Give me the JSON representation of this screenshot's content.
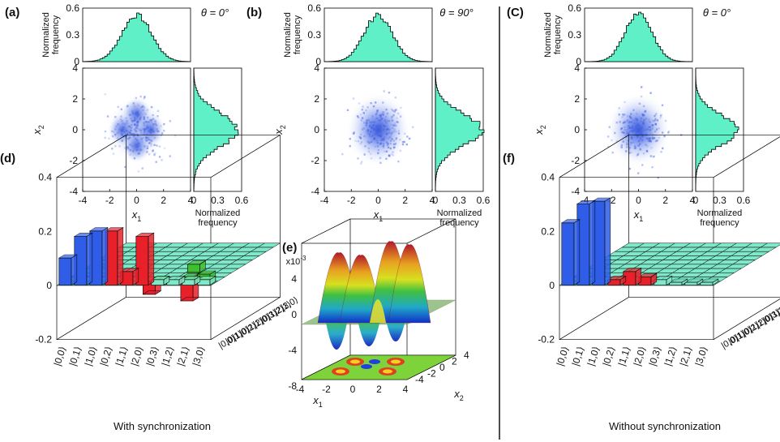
{
  "figure": {
    "panels": [
      {
        "id": "a",
        "label": "(a)",
        "theta": "θ = 0°",
        "pattern": "four-lobe"
      },
      {
        "id": "b",
        "label": "(b)",
        "theta": "θ = 90°",
        "pattern": "gaussian"
      },
      {
        "id": "c",
        "label": "(C)",
        "theta": "θ = 0°",
        "pattern": "gaussian"
      }
    ],
    "scatter_axes": {
      "xlabel": "x",
      "xsub": "1",
      "ylabel": "x",
      "ysub": "2",
      "ticks": [
        "-4",
        "-2",
        "0",
        "2",
        "4"
      ]
    },
    "hist_axes": {
      "ylabel_line1": "Normalized",
      "ylabel_line2": "frequency",
      "ticks": [
        "0",
        "0.3",
        "0.6"
      ]
    },
    "panel_d": {
      "label": "(d)",
      "caption": "With synchronization"
    },
    "panel_e": {
      "label": "(e)",
      "zscale": "x10",
      "zscale_exp": "-3",
      "zticks": [
        "4",
        "0",
        "-4",
        "-8"
      ],
      "x1_ticks": [
        "-4",
        "-2",
        "0",
        "2",
        "4"
      ],
      "x2_ticks": [
        "4",
        "2",
        "0",
        "-2",
        "-4"
      ],
      "x1_label": "x",
      "x1_sub": "1",
      "x2_label": "x",
      "x2_sub": "2"
    },
    "panel_f": {
      "label": "(f)",
      "caption": "Without synchronization"
    },
    "bar3d_axes": {
      "zticks": [
        "0.4",
        "0.2",
        "0",
        "-0.2"
      ],
      "basis": [
        "|0,0⟩",
        "|0,1⟩",
        "|1,0⟩",
        "|0,2⟩",
        "|1,1⟩",
        "|2,0⟩",
        "|0,3⟩",
        "|1,2⟩",
        "|2,1⟩",
        "|3,0⟩"
      ]
    },
    "colors": {
      "hist": "#5ff0c8",
      "blue": "#2f5de8",
      "red": "#e8202a",
      "green": "#3fbf2f",
      "grid": "#7fe8c8"
    }
  },
  "chart_data": [
    {
      "type": "histogram",
      "panel": "a-top",
      "xlabel": "x1",
      "ylabel": "Normalized frequency",
      "ylim": [
        0,
        0.6
      ],
      "peak": 0.52
    },
    {
      "type": "histogram",
      "panel": "a-right",
      "xlabel": "Normalized frequency",
      "ylabel": "x2",
      "xlim": [
        0,
        0.6
      ],
      "peak": 0.55
    },
    {
      "type": "heatmap",
      "panel": "a",
      "xlabel": "x1",
      "ylabel": "x2",
      "xlim": [
        -4,
        4
      ],
      "ylim": [
        -4,
        4
      ]
    },
    {
      "type": "histogram",
      "panel": "b-top",
      "ylim": [
        0,
        0.6
      ],
      "peak": 0.52
    },
    {
      "type": "histogram",
      "panel": "b-right",
      "xlim": [
        0,
        0.6
      ],
      "peak": 0.58
    },
    {
      "type": "heatmap",
      "panel": "b",
      "xlabel": "x1",
      "ylabel": "x2",
      "xlim": [
        -4,
        4
      ],
      "ylim": [
        -4,
        4
      ]
    },
    {
      "type": "histogram",
      "panel": "c-top",
      "ylim": [
        0,
        0.6
      ],
      "peak": 0.55
    },
    {
      "type": "histogram",
      "panel": "c-right",
      "xlim": [
        0,
        0.6
      ],
      "peak": 0.52
    },
    {
      "type": "heatmap",
      "panel": "c",
      "xlabel": "x1",
      "ylabel": "x2",
      "xlim": [
        -4,
        4
      ],
      "ylim": [
        -4,
        4
      ]
    },
    {
      "type": "bar3d",
      "panel": "d",
      "title": "With synchronization",
      "zlim": [
        -0.2,
        0.4
      ],
      "diag_values": [
        0.1,
        0.18,
        0.2,
        0.2,
        0.05,
        0.18,
        0.02,
        0.02,
        0.02,
        0.02
      ],
      "offdiag": [
        {
          "row": 0,
          "col": 6,
          "value": 0.02,
          "color": "green"
        },
        {
          "row": 0,
          "col": 8,
          "value": 0.03,
          "color": "green"
        },
        {
          "row": 0,
          "col": 9,
          "value": 0.04,
          "color": "green"
        },
        {
          "row": 2,
          "col": 7,
          "value": -0.09,
          "color": "red"
        },
        {
          "row": 1,
          "col": 5,
          "value": -0.05,
          "color": "red"
        },
        {
          "row": 3,
          "col": 7,
          "value": 0.03,
          "color": "green"
        }
      ]
    },
    {
      "type": "surface",
      "panel": "e",
      "xlabel": "x1",
      "ylabel": "x2",
      "zlim": [
        -8,
        4
      ],
      "zscale": "x10^-3"
    },
    {
      "type": "bar3d",
      "panel": "f",
      "title": "Without synchronization",
      "zlim": [
        -0.2,
        0.4
      ],
      "diag_values": [
        0.23,
        0.3,
        0.31,
        0.02,
        0.05,
        0.03,
        0.02,
        0.01,
        0.01,
        0.01
      ],
      "offdiag": []
    }
  ]
}
